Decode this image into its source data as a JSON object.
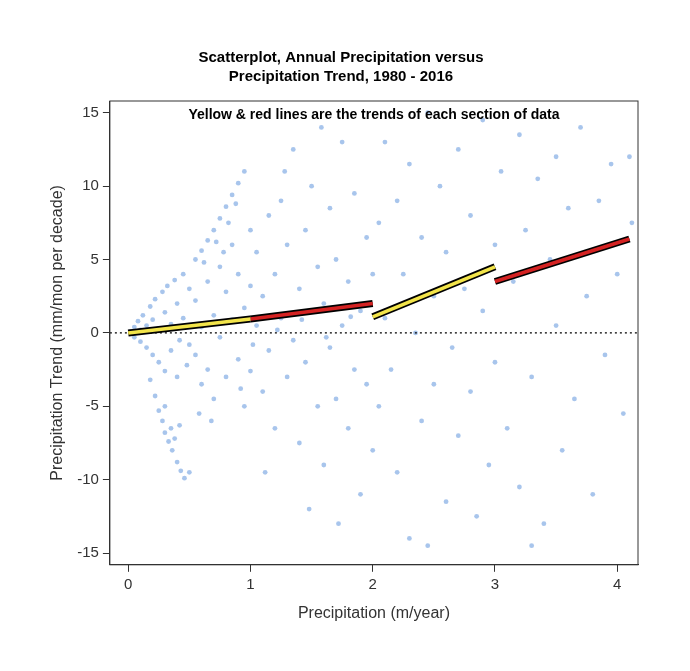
{
  "chart_data": {
    "type": "scatter",
    "title": [
      "Scatterplot, Annual Precipitation versus",
      "Precipitation Trend, 1980 - 2016"
    ],
    "annotations": [
      "Yellow & red lines are the trends of each section of data"
    ],
    "x_label": "Precipitation (m/year)",
    "y_label": "Precipitation Trend (mm/mon per decade)",
    "xlim": [
      -0.15,
      4.17
    ],
    "ylim": [
      -15.8,
      15.8
    ],
    "xticks": [
      0,
      1,
      2,
      3,
      4
    ],
    "yticks": [
      -15,
      -10,
      -5,
      0,
      5,
      10,
      15
    ],
    "grid": false,
    "series": [
      {
        "type": "scatter",
        "color": "#3f7fd4",
        "marker": "circle",
        "x": [
          0.02,
          0.05,
          0.05,
          0.08,
          0.1,
          0.1,
          0.12,
          0.15,
          0.15,
          0.18,
          0.2,
          0.2,
          0.22,
          0.25,
          0.25,
          0.28,
          0.3,
          0.3,
          0.32,
          0.35,
          0.35,
          0.38,
          0.4,
          0.4,
          0.42,
          0.45,
          0.45,
          0.48,
          0.5,
          0.5,
          0.55,
          0.6,
          0.65,
          0.7,
          0.75,
          0.8,
          0.85,
          0.9,
          0.95,
          0.62,
          0.72,
          0.82,
          0.88,
          0.18,
          0.22,
          0.25,
          0.28,
          0.3,
          0.33,
          0.36,
          0.4,
          0.43,
          0.46,
          0.38,
          0.42,
          0.5,
          0.3,
          0.35,
          0.55,
          0.55,
          0.6,
          0.6,
          0.65,
          0.65,
          0.7,
          0.7,
          0.75,
          0.75,
          0.8,
          0.8,
          0.85,
          0.85,
          0.9,
          0.9,
          0.95,
          0.95,
          1.0,
          1.0,
          1.0,
          0.58,
          0.68,
          0.78,
          0.92,
          1.05,
          1.05,
          1.1,
          1.1,
          1.15,
          1.15,
          1.2,
          1.2,
          1.25,
          1.25,
          1.3,
          1.3,
          1.35,
          1.35,
          1.4,
          1.4,
          1.45,
          1.45,
          1.5,
          1.5,
          1.55,
          1.55,
          1.6,
          1.6,
          1.65,
          1.65,
          1.7,
          1.7,
          1.75,
          1.75,
          1.8,
          1.8,
          1.85,
          1.85,
          1.9,
          1.9,
          1.95,
          1.95,
          2.0,
          2.0,
          1.12,
          1.48,
          1.72,
          1.28,
          1.58,
          1.02,
          1.22,
          1.42,
          1.62,
          1.82,
          2.05,
          2.05,
          2.1,
          2.1,
          2.15,
          2.2,
          2.2,
          2.25,
          2.3,
          2.3,
          2.35,
          2.4,
          2.4,
          2.45,
          2.5,
          2.5,
          2.55,
          2.6,
          2.6,
          2.65,
          2.7,
          2.7,
          2.75,
          2.8,
          2.8,
          2.85,
          2.9,
          2.9,
          2.95,
          3.0,
          3.0,
          3.05,
          3.1,
          3.15,
          3.2,
          3.2,
          3.25,
          3.3,
          3.35,
          3.4,
          3.45,
          3.5,
          3.5,
          3.55,
          3.6,
          3.65,
          3.7,
          3.75,
          3.8,
          3.85,
          3.9,
          3.95,
          4.0,
          4.05,
          4.1,
          4.12,
          3.3,
          2.45
        ],
        "values": [
          0.1,
          -0.3,
          0.4,
          0.8,
          -0.6,
          0.2,
          1.2,
          -1.0,
          0.5,
          1.8,
          -1.5,
          0.9,
          2.3,
          -2.0,
          0.3,
          2.8,
          -2.6,
          1.4,
          3.2,
          -1.2,
          0.6,
          3.6,
          -3.0,
          2.0,
          -0.5,
          4.0,
          1.0,
          -2.2,
          3.0,
          -0.8,
          5.0,
          5.6,
          6.3,
          7.0,
          7.8,
          8.6,
          9.4,
          10.2,
          11.0,
          4.8,
          6.2,
          7.5,
          8.8,
          -3.2,
          -4.3,
          -5.3,
          -6.0,
          -6.8,
          -7.4,
          -8.0,
          -8.8,
          -9.4,
          -9.9,
          -7.2,
          -6.3,
          -9.5,
          -5.0,
          -6.5,
          2.2,
          -1.5,
          -3.5,
          0.4,
          3.5,
          -2.5,
          1.2,
          -4.5,
          4.5,
          -0.3,
          2.8,
          -3.0,
          6.0,
          0.9,
          -1.8,
          4.0,
          -5.0,
          1.7,
          7.0,
          -2.6,
          3.2,
          -5.5,
          -6.0,
          5.5,
          -3.8,
          0.5,
          5.5,
          -4.0,
          2.5,
          8.0,
          -1.2,
          4.0,
          -6.5,
          1.0,
          9.0,
          -3.0,
          6.0,
          -0.5,
          12.5,
          3.0,
          -7.5,
          7.0,
          -2.0,
          1.5,
          10.0,
          -5.0,
          4.5,
          -9.0,
          2.0,
          8.5,
          -1.0,
          5.0,
          -4.5,
          13.0,
          0.5,
          -6.5,
          3.5,
          9.5,
          -2.5,
          1.5,
          -11.0,
          6.5,
          -3.5,
          4.0,
          -8.0,
          -9.5,
          -12.0,
          -13.0,
          11.0,
          14.0,
          -0.8,
          0.2,
          0.9,
          -0.3,
          1.1,
          7.5,
          -5.0,
          1.0,
          13.0,
          -2.5,
          9.0,
          -9.5,
          4.0,
          -14.0,
          11.5,
          0.0,
          6.5,
          -6.0,
          15.0,
          2.5,
          -3.5,
          10.0,
          -11.5,
          5.5,
          -1.0,
          12.5,
          -7.0,
          3.0,
          8.0,
          -4.0,
          -12.5,
          14.5,
          1.5,
          -9.0,
          6.0,
          -2.0,
          11.0,
          -6.5,
          3.5,
          13.5,
          -10.5,
          7.0,
          -3.0,
          10.5,
          -13.0,
          5.0,
          0.5,
          12.0,
          -8.0,
          8.5,
          -4.5,
          14.0,
          2.5,
          -11.0,
          9.0,
          -1.5,
          11.5,
          4.0,
          -5.5,
          12.0,
          7.5,
          -14.5,
          -14.5
        ]
      },
      {
        "type": "line",
        "color": "#000000",
        "line_style": "dotted",
        "x": [
          -0.15,
          4.17
        ],
        "values": [
          0,
          0
        ]
      },
      {
        "type": "line",
        "color": "#f2e44a",
        "line_style": "solid",
        "x": [
          0,
          1
        ],
        "values": [
          0.0,
          0.95
        ]
      },
      {
        "type": "line",
        "color": "#d42222",
        "line_style": "solid",
        "x": [
          1,
          2
        ],
        "values": [
          0.95,
          2.0
        ]
      },
      {
        "type": "line",
        "color": "#f2e44a",
        "line_style": "solid",
        "x": [
          2,
          3
        ],
        "values": [
          1.1,
          4.5
        ]
      },
      {
        "type": "line",
        "color": "#d42222",
        "line_style": "solid",
        "x": [
          3,
          4.1
        ],
        "values": [
          3.5,
          6.4
        ]
      }
    ]
  }
}
